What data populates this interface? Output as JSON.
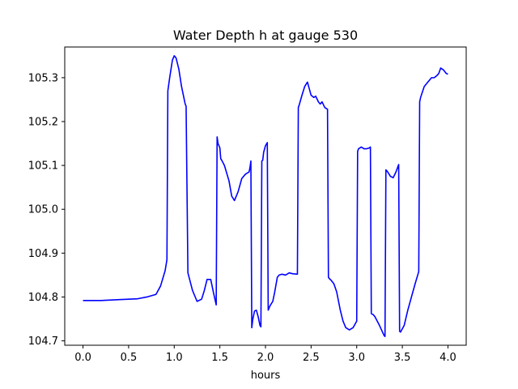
{
  "chart_data": {
    "type": "line",
    "title": "Water Depth h at gauge 530",
    "xlabel": "hours",
    "ylabel": "",
    "xlim": [
      -0.2,
      4.2
    ],
    "ylim": [
      104.69,
      105.37
    ],
    "xticks": [
      0.0,
      0.5,
      1.0,
      1.5,
      2.0,
      2.5,
      3.0,
      3.5,
      4.0
    ],
    "xtick_labels": [
      "0.0",
      "0.5",
      "1.0",
      "1.5",
      "2.0",
      "2.5",
      "3.0",
      "3.5",
      "4.0"
    ],
    "yticks": [
      104.7,
      104.8,
      104.9,
      105.0,
      105.1,
      105.2,
      105.3
    ],
    "ytick_labels": [
      "104.7",
      "104.8",
      "104.9",
      "105.0",
      "105.1",
      "105.2",
      "105.3"
    ],
    "grid": false,
    "series": [
      {
        "color": "#0000ff",
        "x": [
          0.0,
          0.2,
          0.4,
          0.6,
          0.7,
          0.8,
          0.85,
          0.9,
          0.92,
          0.93,
          0.95,
          0.98,
          1.0,
          1.02,
          1.05,
          1.08,
          1.12,
          1.13,
          1.15,
          1.2,
          1.25,
          1.3,
          1.33,
          1.36,
          1.4,
          1.43,
          1.46,
          1.47,
          1.48,
          1.5,
          1.51,
          1.52,
          1.55,
          1.6,
          1.63,
          1.66,
          1.7,
          1.74,
          1.78,
          1.82,
          1.83,
          1.84,
          1.85,
          1.86,
          1.88,
          1.9,
          1.92,
          1.94,
          1.95,
          1.96,
          1.97,
          1.98,
          2.0,
          2.02,
          2.03,
          2.04,
          2.05,
          2.08,
          2.1,
          2.13,
          2.15,
          2.18,
          2.22,
          2.26,
          2.3,
          2.35,
          2.36,
          2.37,
          2.4,
          2.43,
          2.46,
          2.48,
          2.5,
          2.53,
          2.55,
          2.58,
          2.6,
          2.62,
          2.65,
          2.68,
          2.69,
          2.7,
          2.72,
          2.75,
          2.78,
          2.82,
          2.85,
          2.88,
          2.92,
          2.96,
          3.0,
          3.01,
          3.02,
          3.05,
          3.08,
          3.11,
          3.14,
          3.15,
          3.16,
          3.18,
          3.2,
          3.25,
          3.3,
          3.31,
          3.32,
          3.34,
          3.37,
          3.4,
          3.43,
          3.46,
          3.47,
          3.48,
          3.52,
          3.56,
          3.6,
          3.64,
          3.68,
          3.69,
          3.7,
          3.74,
          3.78,
          3.82,
          3.85,
          3.88,
          3.9,
          3.92,
          3.95,
          3.98,
          4.0
        ],
        "y": [
          104.792,
          104.792,
          104.794,
          104.796,
          104.8,
          104.806,
          104.825,
          104.86,
          104.885,
          105.27,
          105.3,
          105.34,
          105.35,
          105.345,
          105.32,
          105.28,
          105.24,
          105.235,
          104.855,
          104.815,
          104.79,
          104.795,
          104.815,
          104.84,
          104.84,
          104.81,
          104.782,
          105.165,
          105.15,
          105.14,
          105.115,
          105.112,
          105.1,
          105.065,
          105.03,
          105.02,
          105.04,
          105.07,
          105.08,
          105.085,
          105.095,
          105.11,
          104.73,
          104.748,
          104.768,
          104.77,
          104.755,
          104.735,
          104.732,
          105.11,
          105.112,
          105.13,
          105.145,
          105.152,
          104.77,
          104.775,
          104.78,
          104.79,
          104.81,
          104.845,
          104.85,
          104.852,
          104.85,
          104.855,
          104.853,
          104.852,
          105.232,
          105.238,
          105.26,
          105.28,
          105.29,
          105.275,
          105.26,
          105.255,
          105.258,
          105.245,
          105.24,
          105.245,
          105.232,
          105.228,
          104.845,
          104.842,
          104.838,
          104.83,
          104.812,
          104.77,
          104.745,
          104.73,
          104.725,
          104.73,
          104.745,
          105.132,
          105.138,
          105.142,
          105.138,
          105.138,
          105.14,
          105.142,
          104.762,
          104.76,
          104.755,
          104.735,
          104.712,
          104.71,
          105.09,
          105.085,
          105.075,
          105.072,
          105.085,
          105.102,
          104.722,
          104.72,
          104.735,
          104.77,
          104.8,
          104.83,
          104.858,
          105.245,
          105.255,
          105.28,
          105.29,
          105.3,
          105.3,
          105.305,
          105.31,
          105.322,
          105.318,
          105.31,
          105.308
        ]
      }
    ]
  }
}
